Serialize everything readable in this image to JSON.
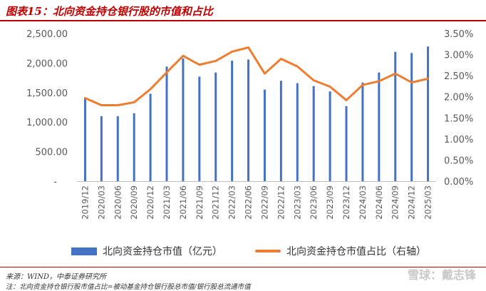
{
  "title": "图表15：北向资金持仓银行股的市值和占比",
  "source": "来源：WIND，中泰证券研究所",
  "note": "注：北向资金持仓银行股市值占比=被动基金持仓银行股总市值/银行股总流通市值",
  "watermark": "雪球：戴志锋",
  "chart_data": {
    "type": "bar+line",
    "categories": [
      "2019/12",
      "2020/03",
      "2020/06",
      "2020/09",
      "2020/12",
      "2021/03",
      "2021/06",
      "2021/09",
      "2021/12",
      "2022/03",
      "2022/06",
      "2022/09",
      "2022/12",
      "2023/03",
      "2023/06",
      "2023/09",
      "2023/12",
      "2024/03",
      "2024/06",
      "2024/09",
      "2024/12",
      "2025/03"
    ],
    "series": [
      {
        "name": "北向资金持仓市值（亿元）",
        "type": "bar",
        "axis": "left",
        "color": "#4472c4",
        "values": [
          1400,
          1100,
          1100,
          1150,
          1480,
          1940,
          2080,
          1770,
          1840,
          2040,
          2060,
          1550,
          1700,
          1660,
          1610,
          1520,
          1270,
          1670,
          1840,
          2190,
          2170,
          2280
        ]
      },
      {
        "name": "北向资金持仓市值占比（右轴）",
        "type": "line",
        "axis": "right",
        "color": "#ed7d31",
        "values": [
          1.97,
          1.8,
          1.8,
          1.87,
          2.18,
          2.58,
          2.97,
          2.76,
          2.85,
          3.07,
          3.17,
          2.55,
          2.9,
          2.72,
          2.39,
          2.24,
          1.92,
          2.28,
          2.37,
          2.55,
          2.34,
          2.43
        ]
      }
    ],
    "left_axis": {
      "ticks": [
        "-",
        "500.00",
        "1,000.00",
        "1,500.00",
        "2,000.00",
        "2,500.00"
      ],
      "range": [
        0,
        2500
      ]
    },
    "right_axis": {
      "ticks": [
        "0.00%",
        "0.50%",
        "1.00%",
        "1.50%",
        "2.00%",
        "2.50%",
        "3.00%",
        "3.50%"
      ],
      "range": [
        0,
        3.5
      ]
    },
    "legend_position": "bottom",
    "grid": false
  }
}
